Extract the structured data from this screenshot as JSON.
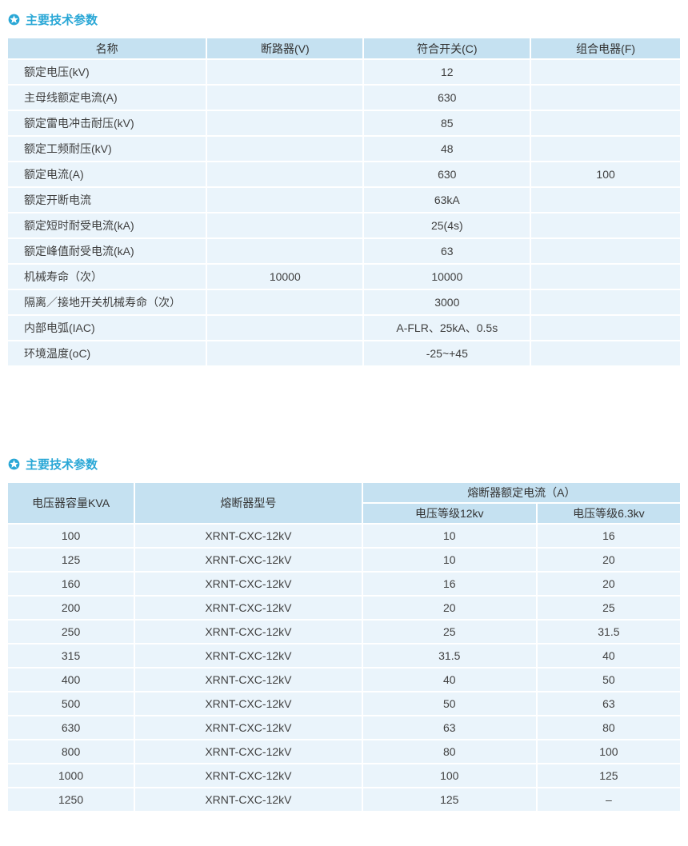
{
  "colors": {
    "accent": "#29a7d6",
    "header-bg": "#c5e1f1",
    "row-bg": "#eaf4fb",
    "text": "#3f3f3f"
  },
  "section1": {
    "icon": "star-badge",
    "title": "主要技术参数",
    "table": {
      "headers": [
        "名称",
        "断路器(V)",
        "符合开关(C)",
        "组合电器(F)"
      ],
      "rows": [
        [
          "额定电压(kV)",
          "",
          "12",
          ""
        ],
        [
          "主母线额定电流(A)",
          "",
          "630",
          ""
        ],
        [
          "额定雷电冲击耐压(kV)",
          "",
          "85",
          ""
        ],
        [
          "额定工频耐压(kV)",
          "",
          "48",
          ""
        ],
        [
          "额定电流(A)",
          "",
          "630",
          "100"
        ],
        [
          "额定开断电流",
          "",
          "63kA",
          ""
        ],
        [
          "额定短时耐受电流(kA)",
          "",
          "25(4s)",
          ""
        ],
        [
          "额定峰值耐受电流(kA)",
          "",
          "63",
          ""
        ],
        [
          "机械寿命（次）",
          "10000",
          "10000",
          ""
        ],
        [
          "隔离／接地开关机械寿命（次）",
          "",
          "3000",
          ""
        ],
        [
          "内部电弧(IAC)",
          "",
          "A-FLR、25kA、0.5s",
          ""
        ],
        [
          "环境温度(oC)",
          "",
          "-25~+45",
          ""
        ]
      ]
    }
  },
  "section2": {
    "icon": "star-badge",
    "title": "主要技术参数",
    "table": {
      "col1": "电压器容量KVA",
      "col2": "熔断器型号",
      "group": "熔断器额定电流（A）",
      "sub1": "电压等级12kv",
      "sub2": "电压等级6.3kv",
      "rows": [
        [
          "100",
          "XRNT-CXC-12kV",
          "10",
          "16"
        ],
        [
          "125",
          "XRNT-CXC-12kV",
          "10",
          "20"
        ],
        [
          "160",
          "XRNT-CXC-12kV",
          "16",
          "20"
        ],
        [
          "200",
          "XRNT-CXC-12kV",
          "20",
          "25"
        ],
        [
          "250",
          "XRNT-CXC-12kV",
          "25",
          "31.5"
        ],
        [
          "315",
          "XRNT-CXC-12kV",
          "31.5",
          "40"
        ],
        [
          "400",
          "XRNT-CXC-12kV",
          "40",
          "50"
        ],
        [
          "500",
          "XRNT-CXC-12kV",
          "50",
          "63"
        ],
        [
          "630",
          "XRNT-CXC-12kV",
          "63",
          "80"
        ],
        [
          "800",
          "XRNT-CXC-12kV",
          "80",
          "100"
        ],
        [
          "1000",
          "XRNT-CXC-12kV",
          "100",
          "125"
        ],
        [
          "1250",
          "XRNT-CXC-12kV",
          "125",
          "–"
        ]
      ]
    }
  }
}
